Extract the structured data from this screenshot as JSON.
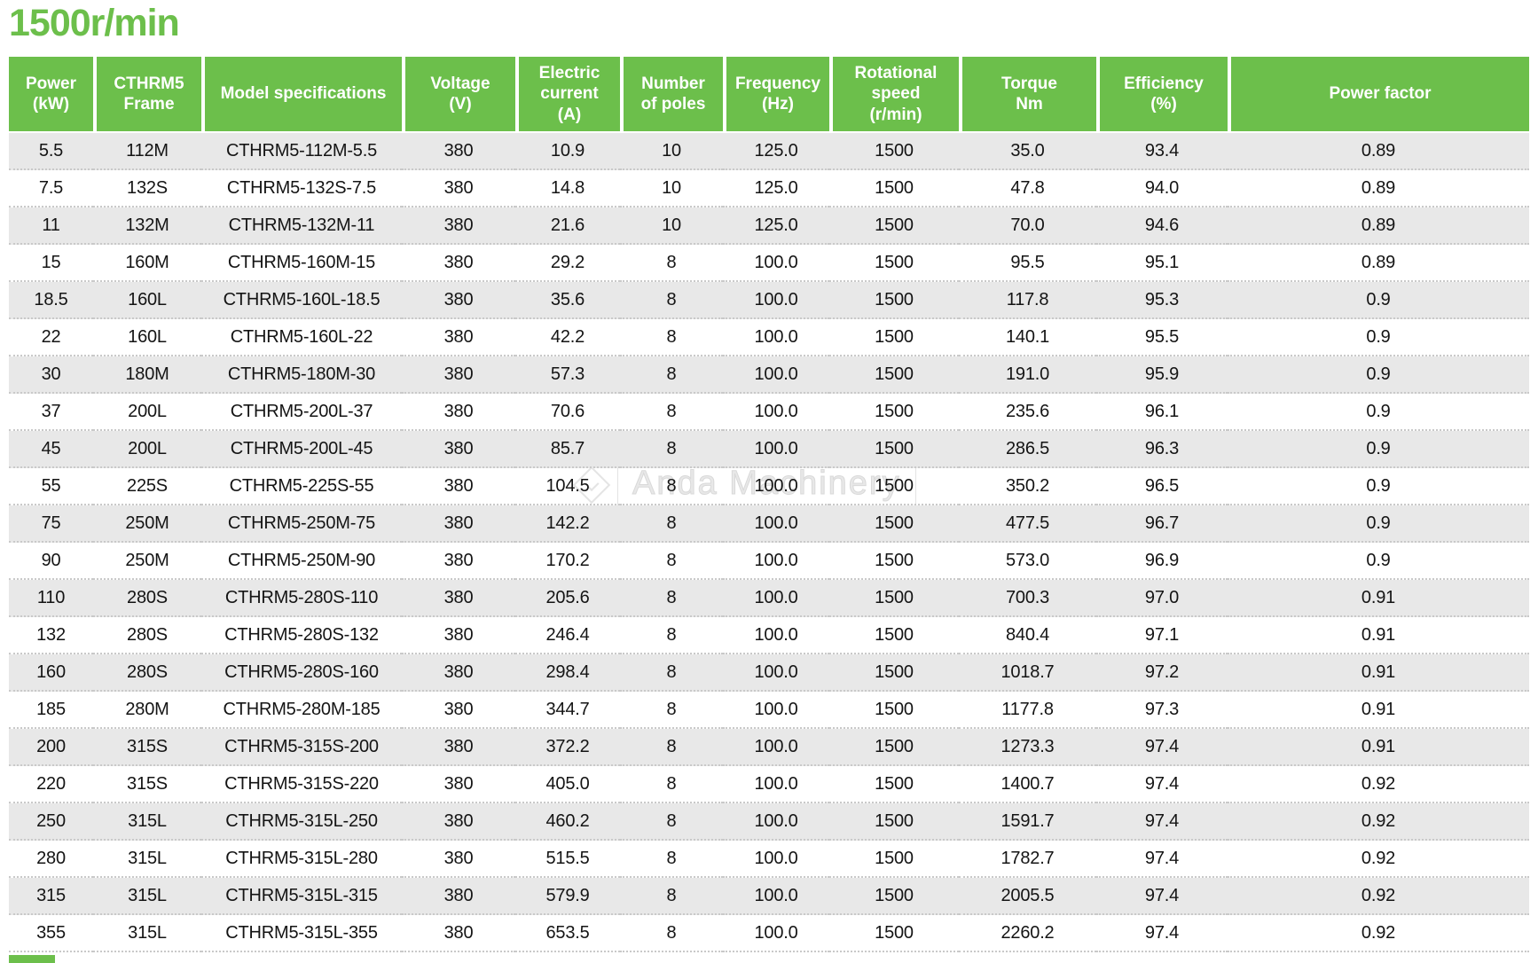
{
  "title": "1500r/min",
  "accent_color": "#6cbf4b",
  "row_stripe_color": "#e8e8e8",
  "watermark": {
    "text": "Anda Machinery"
  },
  "chart_data": {
    "type": "table",
    "title": "1500r/min",
    "columns": [
      {
        "key": "power",
        "label": "Power\n(kW)"
      },
      {
        "key": "frame",
        "label": "CTHRM5\nFrame"
      },
      {
        "key": "model",
        "label": "Model specifications"
      },
      {
        "key": "voltage",
        "label": "Voltage\n(V)"
      },
      {
        "key": "current",
        "label": "Electric\ncurrent\n(A)"
      },
      {
        "key": "poles",
        "label": "Number\nof poles"
      },
      {
        "key": "frequency",
        "label": "Frequency\n(Hz)"
      },
      {
        "key": "speed",
        "label": "Rotational\nspeed\n(r/min)"
      },
      {
        "key": "torque",
        "label": "Torque\nNm"
      },
      {
        "key": "efficiency",
        "label": "Efficiency\n(%)"
      },
      {
        "key": "power_factor",
        "label": "Power factor"
      }
    ],
    "rows": [
      [
        "5.5",
        "112M",
        "CTHRM5-112M-5.5",
        "380",
        "10.9",
        "10",
        "125.0",
        "1500",
        "35.0",
        "93.4",
        "0.89"
      ],
      [
        "7.5",
        "132S",
        "CTHRM5-132S-7.5",
        "380",
        "14.8",
        "10",
        "125.0",
        "1500",
        "47.8",
        "94.0",
        "0.89"
      ],
      [
        "11",
        "132M",
        "CTHRM5-132M-11",
        "380",
        "21.6",
        "10",
        "125.0",
        "1500",
        "70.0",
        "94.6",
        "0.89"
      ],
      [
        "15",
        "160M",
        "CTHRM5-160M-15",
        "380",
        "29.2",
        "8",
        "100.0",
        "1500",
        "95.5",
        "95.1",
        "0.89"
      ],
      [
        "18.5",
        "160L",
        "CTHRM5-160L-18.5",
        "380",
        "35.6",
        "8",
        "100.0",
        "1500",
        "117.8",
        "95.3",
        "0.9"
      ],
      [
        "22",
        "160L",
        "CTHRM5-160L-22",
        "380",
        "42.2",
        "8",
        "100.0",
        "1500",
        "140.1",
        "95.5",
        "0.9"
      ],
      [
        "30",
        "180M",
        "CTHRM5-180M-30",
        "380",
        "57.3",
        "8",
        "100.0",
        "1500",
        "191.0",
        "95.9",
        "0.9"
      ],
      [
        "37",
        "200L",
        "CTHRM5-200L-37",
        "380",
        "70.6",
        "8",
        "100.0",
        "1500",
        "235.6",
        "96.1",
        "0.9"
      ],
      [
        "45",
        "200L",
        "CTHRM5-200L-45",
        "380",
        "85.7",
        "8",
        "100.0",
        "1500",
        "286.5",
        "96.3",
        "0.9"
      ],
      [
        "55",
        "225S",
        "CTHRM5-225S-55",
        "380",
        "104.5",
        "8",
        "100.0",
        "1500",
        "350.2",
        "96.5",
        "0.9"
      ],
      [
        "75",
        "250M",
        "CTHRM5-250M-75",
        "380",
        "142.2",
        "8",
        "100.0",
        "1500",
        "477.5",
        "96.7",
        "0.9"
      ],
      [
        "90",
        "250M",
        "CTHRM5-250M-90",
        "380",
        "170.2",
        "8",
        "100.0",
        "1500",
        "573.0",
        "96.9",
        "0.9"
      ],
      [
        "110",
        "280S",
        "CTHRM5-280S-110",
        "380",
        "205.6",
        "8",
        "100.0",
        "1500",
        "700.3",
        "97.0",
        "0.91"
      ],
      [
        "132",
        "280S",
        "CTHRM5-280S-132",
        "380",
        "246.4",
        "8",
        "100.0",
        "1500",
        "840.4",
        "97.1",
        "0.91"
      ],
      [
        "160",
        "280S",
        "CTHRM5-280S-160",
        "380",
        "298.4",
        "8",
        "100.0",
        "1500",
        "1018.7",
        "97.2",
        "0.91"
      ],
      [
        "185",
        "280M",
        "CTHRM5-280M-185",
        "380",
        "344.7",
        "8",
        "100.0",
        "1500",
        "1177.8",
        "97.3",
        "0.91"
      ],
      [
        "200",
        "315S",
        "CTHRM5-315S-200",
        "380",
        "372.2",
        "8",
        "100.0",
        "1500",
        "1273.3",
        "97.4",
        "0.91"
      ],
      [
        "220",
        "315S",
        "CTHRM5-315S-220",
        "380",
        "405.0",
        "8",
        "100.0",
        "1500",
        "1400.7",
        "97.4",
        "0.92"
      ],
      [
        "250",
        "315L",
        "CTHRM5-315L-250",
        "380",
        "460.2",
        "8",
        "100.0",
        "1500",
        "1591.7",
        "97.4",
        "0.92"
      ],
      [
        "280",
        "315L",
        "CTHRM5-315L-280",
        "380",
        "515.5",
        "8",
        "100.0",
        "1500",
        "1782.7",
        "97.4",
        "0.92"
      ],
      [
        "315",
        "315L",
        "CTHRM5-315L-315",
        "380",
        "579.9",
        "8",
        "100.0",
        "1500",
        "2005.5",
        "97.4",
        "0.92"
      ],
      [
        "355",
        "315L",
        "CTHRM5-315L-355",
        "380",
        "653.5",
        "8",
        "100.0",
        "1500",
        "2260.2",
        "97.4",
        "0.92"
      ]
    ]
  }
}
